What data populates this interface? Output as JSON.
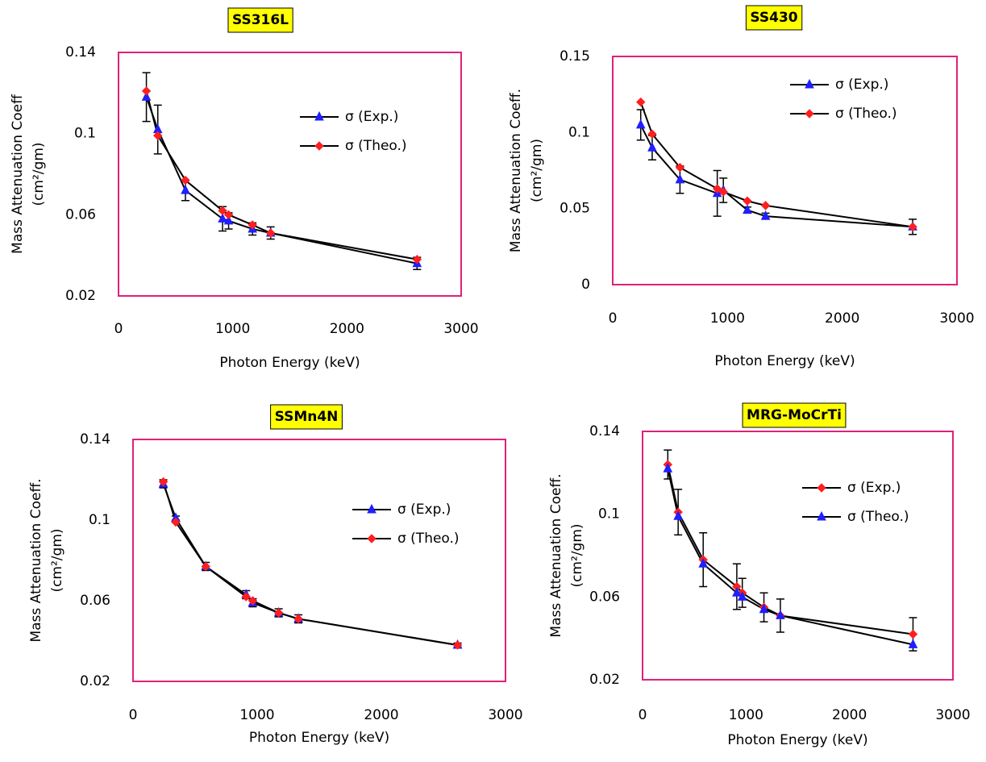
{
  "chart_data": [
    {
      "type": "line",
      "title": "SS316L",
      "xlabel": "Photon Energy (keV)",
      "ylabel": [
        "Mass Attenuation Coeff",
        "(cm²/gm)"
      ],
      "x": [
        244,
        344,
        586,
        911,
        964,
        1173,
        1332,
        2614
      ],
      "series": [
        {
          "name": "σ (Exp.)",
          "color": "#1f1fff",
          "marker": "triangle",
          "values": [
            0.118,
            0.102,
            0.072,
            0.058,
            0.057,
            0.053,
            0.051,
            0.036
          ],
          "errors": [
            0.012,
            0.012,
            0.005,
            0.006,
            0.004,
            0.003,
            0.003,
            0.003
          ]
        },
        {
          "name": "σ (Theo.)",
          "color": "#ff1f1f",
          "marker": "diamond",
          "values": [
            0.121,
            0.099,
            0.077,
            0.062,
            0.06,
            0.055,
            0.051,
            0.038
          ]
        }
      ],
      "xlim": [
        0,
        3000
      ],
      "xticks": [
        0,
        1000,
        2000,
        3000
      ],
      "ylim": [
        0.02,
        0.14
      ],
      "yticks": [
        0.02,
        0.06,
        0.1,
        0.14
      ]
    },
    {
      "type": "line",
      "title": "SS430",
      "xlabel": "Photon Energy (keV)",
      "ylabel": [
        "Mass Attenuation Coeff.",
        "(cm²/gm)"
      ],
      "x": [
        244,
        344,
        586,
        911,
        964,
        1173,
        1332,
        2614
      ],
      "series": [
        {
          "name": "σ (Exp.)",
          "color": "#1f1fff",
          "marker": "triangle",
          "values": [
            0.105,
            0.09,
            0.069,
            0.06,
            0.062,
            0.049,
            0.045,
            0.038
          ],
          "errors": [
            0.01,
            0.008,
            0.009,
            0.015,
            0.008,
            0.002,
            0.002,
            0.005
          ]
        },
        {
          "name": "σ (Theo.)",
          "color": "#ff1f1f",
          "marker": "diamond",
          "values": [
            0.12,
            0.099,
            0.077,
            0.063,
            0.061,
            0.055,
            0.052,
            0.038
          ]
        }
      ],
      "xlim": [
        0,
        3000
      ],
      "xticks": [
        0,
        1000,
        2000,
        3000
      ],
      "ylim": [
        0,
        0.15
      ],
      "yticks": [
        0,
        0.05,
        0.1,
        0.15
      ]
    },
    {
      "type": "line",
      "title": "SSMn4N",
      "xlabel": "Photon Energy (keV)",
      "ylabel": [
        "Mass Attenuation Coeff.",
        "(cm²/gm)"
      ],
      "x": [
        244,
        344,
        586,
        911,
        964,
        1173,
        1332,
        2614
      ],
      "series": [
        {
          "name": "σ (Exp.)",
          "color": "#1f1fff",
          "marker": "triangle",
          "values": [
            0.118,
            0.101,
            0.077,
            0.063,
            0.059,
            0.054,
            0.051,
            0.038
          ],
          "errors": [
            0.002,
            0.001,
            0.002,
            0.002,
            0.002,
            0.002,
            0.002,
            0.001
          ]
        },
        {
          "name": "σ (Theo.)",
          "color": "#ff1f1f",
          "marker": "diamond",
          "values": [
            0.119,
            0.099,
            0.077,
            0.062,
            0.06,
            0.054,
            0.051,
            0.038
          ]
        }
      ],
      "xlim": [
        0,
        3000
      ],
      "xticks": [
        0,
        1000,
        2000,
        3000
      ],
      "ylim": [
        0.02,
        0.14
      ],
      "yticks": [
        0.02,
        0.06,
        0.1,
        0.14
      ]
    },
    {
      "type": "line",
      "title": "MRG-MoCrTi",
      "xlabel": "Photon Energy (keV)",
      "ylabel": [
        "Mass Attenuation Coeff.",
        "(cm²/gm)"
      ],
      "x": [
        244,
        344,
        586,
        911,
        964,
        1173,
        1332,
        2614
      ],
      "series": [
        {
          "name": "σ (Exp.)",
          "color": "#ff1f1f",
          "marker": "diamond",
          "values": [
            0.124,
            0.101,
            0.078,
            0.065,
            0.062,
            0.055,
            0.051,
            0.042
          ],
          "errors": [
            0.007,
            0.011,
            0.013,
            0.011,
            0.007,
            0.007,
            0.008,
            0.008
          ]
        },
        {
          "name": "σ (Theo.)",
          "color": "#1f1fff",
          "marker": "triangle",
          "values": [
            0.122,
            0.099,
            0.076,
            0.062,
            0.06,
            0.054,
            0.051,
            0.037
          ]
        }
      ],
      "xlim": [
        0,
        3000
      ],
      "xticks": [
        0,
        1000,
        2000,
        3000
      ],
      "ylim": [
        0.02,
        0.14
      ],
      "yticks": [
        0.02,
        0.06,
        0.1,
        0.14
      ]
    }
  ]
}
